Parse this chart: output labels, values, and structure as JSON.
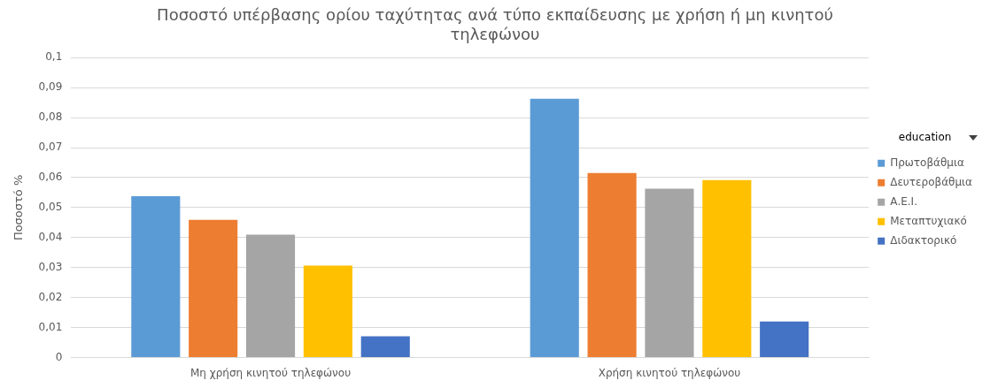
{
  "chart_data": {
    "type": "bar",
    "title": "Ποσοστό υπέρβασης ορίου ταχύτητας ανά τύπο εκπαίδευσης με χρήση ή μη κινητού τηλεφώνου",
    "ylabel": "Ποσοστό %",
    "legend_title": "education",
    "categories": [
      "Μη χρήση κινητού τηλεφώνου",
      "Χρήση κινητού τηλεφώνου"
    ],
    "series": [
      {
        "name": "Πρωτοβάθμια",
        "color": "#5b9bd5",
        "values": [
          0.0538,
          0.0863
        ]
      },
      {
        "name": "Δευτεροβάθμια",
        "color": "#ed7d31",
        "values": [
          0.0459,
          0.0615
        ]
      },
      {
        "name": "Α.Ε.Ι.",
        "color": "#a5a5a5",
        "values": [
          0.041,
          0.0563
        ]
      },
      {
        "name": "Μεταπτυχιακό",
        "color": "#ffc000",
        "values": [
          0.0307,
          0.0592
        ]
      },
      {
        "name": "Διδακτορικό",
        "color": "#4472c4",
        "values": [
          0.0071,
          0.012
        ]
      }
    ],
    "ylim": [
      0,
      0.1
    ],
    "yticks": [
      {
        "value": 0,
        "label": "0"
      },
      {
        "value": 0.01,
        "label": "0,01"
      },
      {
        "value": 0.02,
        "label": "0,02"
      },
      {
        "value": 0.03,
        "label": "0,03"
      },
      {
        "value": 0.04,
        "label": "0,04"
      },
      {
        "value": 0.05,
        "label": "0,05"
      },
      {
        "value": 0.06,
        "label": "0,06"
      },
      {
        "value": 0.07,
        "label": "0,07"
      },
      {
        "value": 0.08,
        "label": "0,08"
      },
      {
        "value": 0.09,
        "label": "0,09"
      },
      {
        "value": 0.1,
        "label": "0,1"
      }
    ],
    "grid": "y",
    "legend": "right"
  }
}
